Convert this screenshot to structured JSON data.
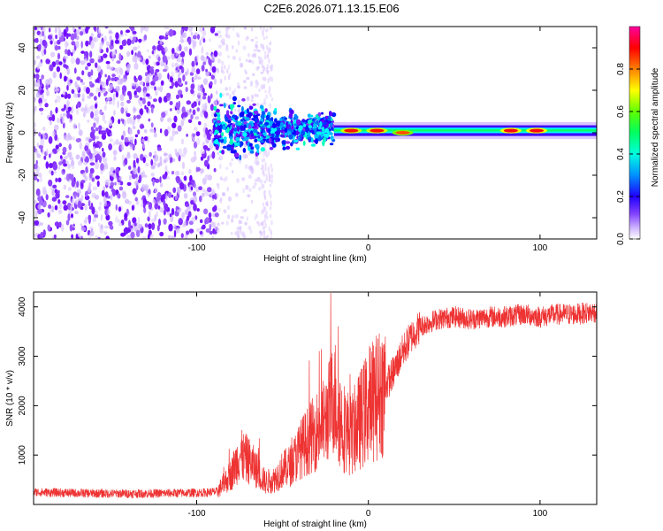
{
  "title": "C2E6.2026.071.13.15.E06",
  "chart_data": [
    {
      "type": "heatmap",
      "xlabel": "Height of straight line (km)",
      "ylabel": "Frequency (Hz)",
      "xlim": [
        -195,
        133
      ],
      "ylim": [
        -50,
        50
      ],
      "xticks": [
        -100,
        0,
        100
      ],
      "yticks": [
        -40,
        -20,
        0,
        20,
        40
      ],
      "xtick_labels": [
        "-100",
        "0",
        "100"
      ],
      "ytick_labels": [
        "-40",
        "-20",
        "0",
        "20",
        "40"
      ],
      "colorbar": {
        "label": "Normalized spectral amplitude",
        "range": [
          0,
          1
        ],
        "ticks": [
          0,
          0.2,
          0.4,
          0.6,
          0.8
        ],
        "tick_labels": [
          "0.0",
          "0.2",
          "0.4",
          "0.6",
          "0.8"
        ],
        "colormap": [
          "#ffffff",
          "#c8a8ff",
          "#6a00ff",
          "#0000ff",
          "#00a0ff",
          "#00ffff",
          "#00ff60",
          "#60ff00",
          "#ffff00",
          "#ff8000",
          "#ff0000",
          "#ff00a0"
        ]
      },
      "regions": [
        {
          "x": [
            -195,
            -88
          ],
          "freq": [
            -50,
            50
          ],
          "amplitude": 0.12,
          "pattern": "dense speckle noise"
        },
        {
          "x": [
            -88,
            -60
          ],
          "freq": [
            -8,
            15
          ],
          "amplitude": 0.25,
          "pattern": "sparse noise"
        },
        {
          "x": [
            -90,
            -20
          ],
          "freq": [
            -8,
            12
          ],
          "amplitude": 0.45,
          "pattern": "noisy band"
        },
        {
          "x": [
            -20,
            133
          ],
          "freq": [
            -1,
            4
          ],
          "amplitude": 0.6,
          "pattern": "narrow carrier line near 1 Hz"
        }
      ],
      "peaks": [
        {
          "x": -10,
          "freq": 1,
          "amplitude": 0.9
        },
        {
          "x": 5,
          "freq": 1,
          "amplitude": 0.9
        },
        {
          "x": 20,
          "freq": 0,
          "amplitude": 0.85
        },
        {
          "x": 83,
          "freq": 1,
          "amplitude": 0.92
        },
        {
          "x": 98,
          "freq": 1,
          "amplitude": 0.92
        }
      ]
    },
    {
      "type": "line",
      "xlabel": "Height of straight line (km)",
      "ylabel": "SNR (10 * v/v)",
      "xlim": [
        -195,
        133
      ],
      "ylim": [
        0,
        4300
      ],
      "xticks": [
        -100,
        0,
        100
      ],
      "yticks": [
        1000,
        2000,
        3000,
        4000
      ],
      "xtick_labels": [
        "-100",
        "0",
        "100"
      ],
      "ytick_labels": [
        "1000",
        "2000",
        "3000",
        "4000"
      ],
      "color": "#ee3333",
      "series": [
        {
          "name": "SNR",
          "x": [
            -195,
            -170,
            -150,
            -130,
            -110,
            -95,
            -88,
            -80,
            -75,
            -70,
            -65,
            -60,
            -55,
            -50,
            -45,
            -40,
            -35,
            -30,
            -25,
            -20,
            -15,
            -10,
            -5,
            0,
            5,
            10,
            15,
            20,
            25,
            30,
            40,
            50,
            60,
            70,
            80,
            90,
            100,
            110,
            120,
            133
          ],
          "y": [
            250,
            230,
            220,
            220,
            230,
            240,
            260,
            600,
            1000,
            900,
            700,
            450,
            500,
            700,
            800,
            1100,
            1300,
            1500,
            1700,
            2200,
            1600,
            1400,
            1700,
            2000,
            2200,
            2400,
            2700,
            3100,
            3400,
            3600,
            3750,
            3800,
            3750,
            3800,
            3800,
            3850,
            3800,
            3850,
            3850,
            3900
          ]
        }
      ]
    }
  ]
}
